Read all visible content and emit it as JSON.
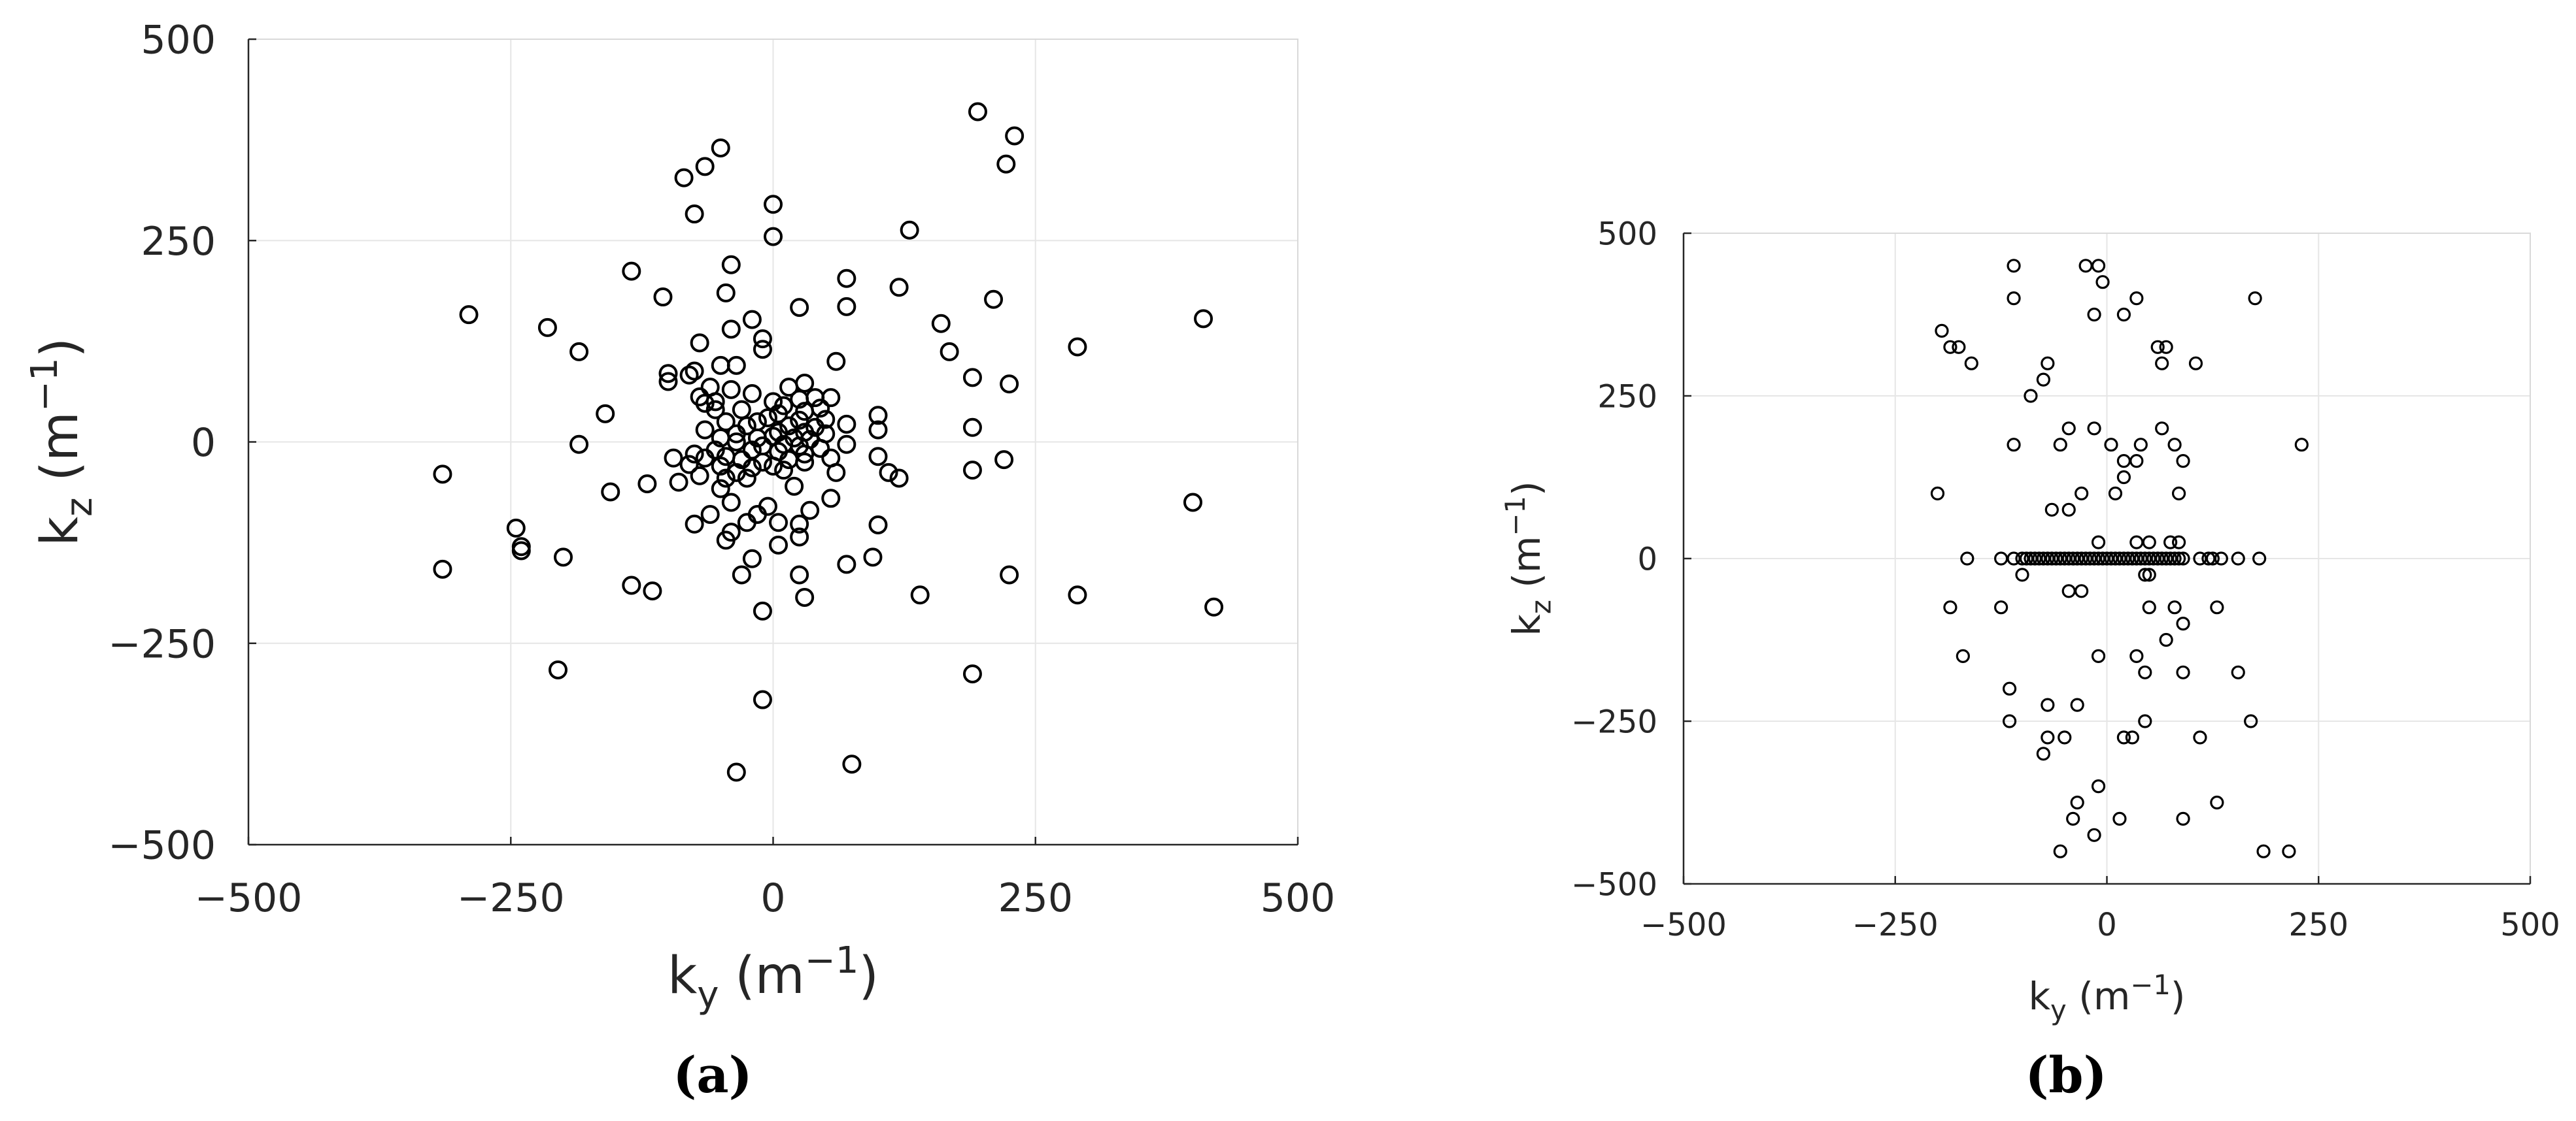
{
  "chart_data": [
    {
      "type": "scatter",
      "panel_label": "(a)",
      "xlabel": "k",
      "xlabel_sub": "y",
      "xlabel_unit": "(m",
      "xlabel_exp": "−1",
      "xlabel_close": ")",
      "ylabel": "k",
      "ylabel_sub": "z",
      "ylabel_unit": "(m",
      "ylabel_exp": "−1",
      "ylabel_close": ")",
      "xlim": [
        -500,
        500
      ],
      "ylim": [
        -500,
        500
      ],
      "xticks": [
        -500,
        -250,
        0,
        250,
        500
      ],
      "yticks": [
        -500,
        -250,
        0,
        250,
        500
      ],
      "xtick_labels": [
        "−500",
        "−250",
        "0",
        "250",
        "500"
      ],
      "ytick_labels": [
        "−500",
        "−250",
        "0",
        "250",
        "500"
      ],
      "grid": true,
      "marker": "open-circle",
      "points": [
        [
          195,
          410
        ],
        [
          230,
          380
        ],
        [
          222,
          345
        ],
        [
          -50,
          365
        ],
        [
          -65,
          342
        ],
        [
          -85,
          328
        ],
        [
          0,
          295
        ],
        [
          -75,
          283
        ],
        [
          130,
          263
        ],
        [
          0,
          255
        ],
        [
          -40,
          220
        ],
        [
          -135,
          212
        ],
        [
          70,
          203
        ],
        [
          120,
          192
        ],
        [
          -45,
          185
        ],
        [
          -105,
          180
        ],
        [
          210,
          177
        ],
        [
          70,
          168
        ],
        [
          25,
          167
        ],
        [
          -290,
          158
        ],
        [
          410,
          153
        ],
        [
          -20,
          152
        ],
        [
          160,
          147
        ],
        [
          -215,
          142
        ],
        [
          -40,
          140
        ],
        [
          -10,
          128
        ],
        [
          290,
          118
        ],
        [
          -70,
          123
        ],
        [
          -10,
          115
        ],
        [
          -185,
          112
        ],
        [
          168,
          112
        ],
        [
          60,
          100
        ],
        [
          -35,
          95
        ],
        [
          -50,
          95
        ],
        [
          -100,
          85
        ],
        [
          -75,
          88
        ],
        [
          -80,
          83
        ],
        [
          190,
          80
        ],
        [
          -100,
          75
        ],
        [
          225,
          72
        ],
        [
          30,
          73
        ],
        [
          -60,
          68
        ],
        [
          15,
          68
        ],
        [
          -40,
          65
        ],
        [
          -20,
          60
        ],
        [
          -70,
          56
        ],
        [
          55,
          55
        ],
        [
          40,
          55
        ],
        [
          25,
          53
        ],
        [
          -55,
          50
        ],
        [
          0,
          50
        ],
        [
          -65,
          48
        ],
        [
          10,
          45
        ],
        [
          45,
          42
        ],
        [
          -55,
          40
        ],
        [
          -30,
          40
        ],
        [
          -160,
          35
        ],
        [
          5,
          35
        ],
        [
          30,
          38
        ],
        [
          100,
          33
        ],
        [
          -5,
          30
        ],
        [
          50,
          28
        ],
        [
          25,
          27
        ],
        [
          -45,
          25
        ],
        [
          -15,
          25
        ],
        [
          15,
          20
        ],
        [
          70,
          22
        ],
        [
          -25,
          20
        ],
        [
          40,
          18
        ],
        [
          190,
          18
        ],
        [
          100,
          15
        ],
        [
          -65,
          15
        ],
        [
          5,
          12
        ],
        [
          -35,
          10
        ],
        [
          30,
          12
        ],
        [
          50,
          10
        ],
        [
          -50,
          5
        ],
        [
          0,
          7
        ],
        [
          -15,
          5
        ],
        [
          20,
          5
        ],
        [
          35,
          3
        ],
        [
          -35,
          0
        ],
        [
          -185,
          -3
        ],
        [
          10,
          -3
        ],
        [
          25,
          -5
        ],
        [
          -10,
          -5
        ],
        [
          70,
          -3
        ],
        [
          -55,
          -10
        ],
        [
          45,
          -8
        ],
        [
          -20,
          -10
        ],
        [
          5,
          -12
        ],
        [
          30,
          -15
        ],
        [
          -75,
          -15
        ],
        [
          -45,
          -18
        ],
        [
          100,
          -18
        ],
        [
          -95,
          -20
        ],
        [
          -65,
          -20
        ],
        [
          55,
          -20
        ],
        [
          -30,
          -22
        ],
        [
          15,
          -22
        ],
        [
          220,
          -22
        ],
        [
          -10,
          -25
        ],
        [
          30,
          -25
        ],
        [
          -80,
          -28
        ],
        [
          -50,
          -30
        ],
        [
          0,
          -30
        ],
        [
          -20,
          -32
        ],
        [
          10,
          -35
        ],
        [
          -35,
          -38
        ],
        [
          60,
          -38
        ],
        [
          110,
          -38
        ],
        [
          190,
          -35
        ],
        [
          -70,
          -42
        ],
        [
          120,
          -45
        ],
        [
          -45,
          -45
        ],
        [
          -25,
          -45
        ],
        [
          -90,
          -50
        ],
        [
          -120,
          -52
        ],
        [
          20,
          -55
        ],
        [
          -50,
          -58
        ],
        [
          -155,
          -62
        ],
        [
          55,
          -70
        ],
        [
          -40,
          -75
        ],
        [
          400,
          -75
        ],
        [
          -315,
          -40
        ],
        [
          -5,
          -80
        ],
        [
          35,
          -85
        ],
        [
          -60,
          -90
        ],
        [
          -15,
          -90
        ],
        [
          -25,
          -100
        ],
        [
          -75,
          -102
        ],
        [
          5,
          -100
        ],
        [
          25,
          -102
        ],
        [
          100,
          -103
        ],
        [
          -245,
          -107
        ],
        [
          -40,
          -112
        ],
        [
          25,
          -118
        ],
        [
          -45,
          -122
        ],
        [
          5,
          -128
        ],
        [
          -240,
          -130
        ],
        [
          -240,
          -135
        ],
        [
          -200,
          -143
        ],
        [
          -20,
          -145
        ],
        [
          95,
          -143
        ],
        [
          70,
          -152
        ],
        [
          -315,
          -158
        ],
        [
          -30,
          -165
        ],
        [
          225,
          -165
        ],
        [
          25,
          -165
        ],
        [
          -135,
          -178
        ],
        [
          -115,
          -185
        ],
        [
          140,
          -190
        ],
        [
          290,
          -190
        ],
        [
          30,
          -193
        ],
        [
          420,
          -205
        ],
        [
          -10,
          -210
        ],
        [
          -205,
          -283
        ],
        [
          190,
          -288
        ],
        [
          -10,
          -320
        ],
        [
          75,
          -400
        ],
        [
          -35,
          -410
        ]
      ]
    },
    {
      "type": "scatter",
      "panel_label": "(b)",
      "xlabel": "k",
      "xlabel_sub": "y",
      "xlabel_unit": "(m",
      "xlabel_exp": "−1",
      "xlabel_close": ")",
      "ylabel": "k",
      "ylabel_sub": "z",
      "ylabel_unit": "(m",
      "ylabel_exp": "−1",
      "ylabel_close": ")",
      "xlim": [
        -500,
        500
      ],
      "ylim": [
        -500,
        500
      ],
      "xticks": [
        -500,
        -250,
        0,
        250,
        500
      ],
      "yticks": [
        -500,
        -250,
        0,
        250,
        500
      ],
      "xtick_labels": [
        "−500",
        "−250",
        "0",
        "250",
        "500"
      ],
      "ytick_labels": [
        "−500",
        "−250",
        "0",
        "250",
        "500"
      ],
      "grid": true,
      "marker": "open-circle",
      "points": [
        [
          -110,
          450
        ],
        [
          -25,
          450
        ],
        [
          -10,
          450
        ],
        [
          -5,
          425
        ],
        [
          -110,
          400
        ],
        [
          35,
          400
        ],
        [
          175,
          400
        ],
        [
          -15,
          375
        ],
        [
          20,
          375
        ],
        [
          -195,
          350
        ],
        [
          -175,
          325
        ],
        [
          -160,
          300
        ],
        [
          -185,
          325
        ],
        [
          -70,
          300
        ],
        [
          60,
          325
        ],
        [
          70,
          325
        ],
        [
          105,
          300
        ],
        [
          65,
          300
        ],
        [
          -75,
          275
        ],
        [
          -90,
          250
        ],
        [
          -15,
          200
        ],
        [
          -45,
          200
        ],
        [
          65,
          200
        ],
        [
          230,
          175
        ],
        [
          -110,
          175
        ],
        [
          -55,
          175
        ],
        [
          5,
          175
        ],
        [
          40,
          175
        ],
        [
          80,
          175
        ],
        [
          20,
          150
        ],
        [
          35,
          150
        ],
        [
          90,
          150
        ],
        [
          20,
          125
        ],
        [
          -200,
          100
        ],
        [
          -30,
          100
        ],
        [
          10,
          100
        ],
        [
          85,
          100
        ],
        [
          -65,
          75
        ],
        [
          -45,
          75
        ],
        [
          -10,
          25
        ],
        [
          35,
          25
        ],
        [
          50,
          25
        ],
        [
          75,
          25
        ],
        [
          85,
          25
        ],
        [
          -45,
          -50
        ],
        [
          -30,
          -50
        ],
        [
          50,
          -75
        ],
        [
          130,
          -75
        ],
        [
          -185,
          -75
        ],
        [
          -125,
          -75
        ],
        [
          80,
          -75
        ],
        [
          90,
          -100
        ],
        [
          -100,
          -25
        ],
        [
          45,
          -25
        ],
        [
          50,
          -25
        ],
        [
          -170,
          -150
        ],
        [
          -10,
          -150
        ],
        [
          35,
          -150
        ],
        [
          70,
          -125
        ],
        [
          45,
          -175
        ],
        [
          90,
          -175
        ],
        [
          155,
          -175
        ],
        [
          -115,
          -200
        ],
        [
          -70,
          -225
        ],
        [
          -35,
          -225
        ],
        [
          -115,
          -250
        ],
        [
          45,
          -250
        ],
        [
          170,
          -250
        ],
        [
          -70,
          -275
        ],
        [
          -50,
          -275
        ],
        [
          20,
          -275
        ],
        [
          30,
          -275
        ],
        [
          110,
          -275
        ],
        [
          -75,
          -300
        ],
        [
          -10,
          -350
        ],
        [
          -35,
          -375
        ],
        [
          130,
          -375
        ],
        [
          -40,
          -400
        ],
        [
          15,
          -400
        ],
        [
          90,
          -400
        ],
        [
          -15,
          -425
        ],
        [
          -55,
          -450
        ],
        [
          185,
          -450
        ],
        [
          215,
          -450
        ],
        [
          -165,
          0
        ],
        [
          -125,
          0
        ],
        [
          -110,
          0
        ],
        [
          -100,
          0
        ],
        [
          -95,
          0
        ],
        [
          -90,
          0
        ],
        [
          -85,
          0
        ],
        [
          -80,
          0
        ],
        [
          -75,
          0
        ],
        [
          -70,
          0
        ],
        [
          -65,
          0
        ],
        [
          -60,
          0
        ],
        [
          -55,
          0
        ],
        [
          -50,
          0
        ],
        [
          -45,
          0
        ],
        [
          -40,
          0
        ],
        [
          -35,
          0
        ],
        [
          -30,
          0
        ],
        [
          -25,
          0
        ],
        [
          -20,
          0
        ],
        [
          -15,
          0
        ],
        [
          -10,
          0
        ],
        [
          -5,
          0
        ],
        [
          0,
          0
        ],
        [
          5,
          0
        ],
        [
          10,
          0
        ],
        [
          15,
          0
        ],
        [
          20,
          0
        ],
        [
          25,
          0
        ],
        [
          30,
          0
        ],
        [
          35,
          0
        ],
        [
          40,
          0
        ],
        [
          45,
          0
        ],
        [
          50,
          0
        ],
        [
          55,
          0
        ],
        [
          60,
          0
        ],
        [
          65,
          0
        ],
        [
          70,
          0
        ],
        [
          75,
          0
        ],
        [
          80,
          0
        ],
        [
          85,
          0
        ],
        [
          90,
          0
        ],
        [
          110,
          0
        ],
        [
          120,
          0
        ],
        [
          125,
          0
        ],
        [
          135,
          0
        ],
        [
          155,
          0
        ],
        [
          180,
          0
        ]
      ]
    }
  ]
}
